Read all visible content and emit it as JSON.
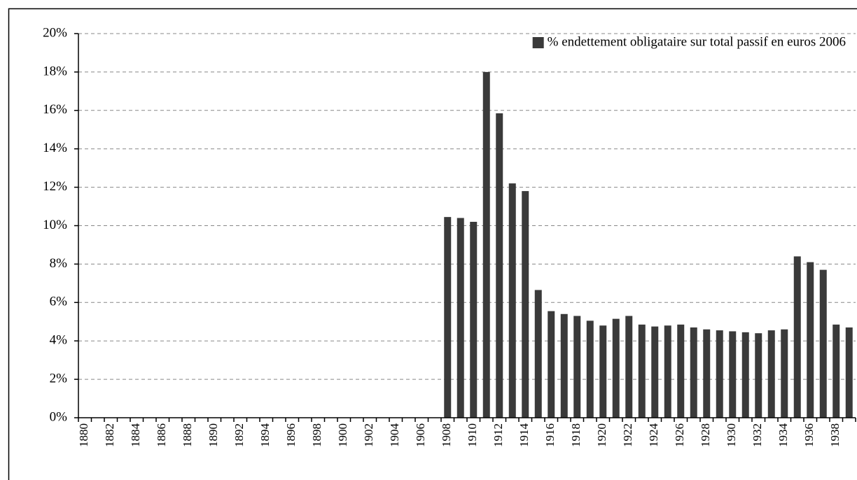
{
  "chart_data": {
    "type": "bar",
    "categories": [
      "1880",
      null,
      "1882",
      null,
      "1884",
      null,
      "1886",
      null,
      "1888",
      null,
      "1890",
      null,
      "1892",
      null,
      "1894",
      null,
      "1896",
      null,
      "1898",
      null,
      "1900",
      null,
      "1902",
      null,
      "1904",
      null,
      "1906",
      null,
      "1908",
      null,
      "1910",
      null,
      "1912",
      null,
      "1914",
      null,
      "1916",
      null,
      "1918",
      null,
      "1920",
      null,
      "1922",
      null,
      "1924",
      null,
      "1926",
      null,
      "1928",
      null,
      "1930",
      null,
      "1932",
      null,
      "1934",
      null,
      "1936",
      null,
      "1938",
      null
    ],
    "series": [
      {
        "name": "% endettement obligataire sur total passif en euros 2006",
        "color": "#3a3a3a",
        "values": [
          null,
          null,
          null,
          null,
          null,
          null,
          null,
          null,
          null,
          null,
          null,
          null,
          null,
          null,
          null,
          null,
          null,
          null,
          null,
          null,
          null,
          null,
          null,
          null,
          null,
          null,
          null,
          null,
          10.45,
          10.4,
          10.2,
          18.0,
          15.85,
          12.2,
          11.8,
          6.65,
          5.55,
          5.4,
          5.3,
          5.05,
          4.8,
          5.15,
          5.3,
          4.85,
          4.75,
          4.8,
          4.85,
          4.7,
          4.6,
          4.55,
          4.5,
          4.45,
          4.4,
          4.55,
          4.6,
          8.4,
          8.1,
          7.7,
          4.85,
          4.7
        ]
      }
    ],
    "ylim": [
      0,
      20
    ],
    "yticks": [
      {
        "value": 0,
        "label": "0%"
      },
      {
        "value": 2,
        "label": "2%"
      },
      {
        "value": 4,
        "label": "4%"
      },
      {
        "value": 6,
        "label": "6%"
      },
      {
        "value": 8,
        "label": "8%"
      },
      {
        "value": 10,
        "label": "10%"
      },
      {
        "value": 12,
        "label": "12%"
      },
      {
        "value": 14,
        "label": "14%"
      },
      {
        "value": 16,
        "label": "16%"
      },
      {
        "value": 18,
        "label": "18%"
      },
      {
        "value": 20,
        "label": "20%"
      }
    ],
    "grid": true,
    "legend": "top-right"
  }
}
